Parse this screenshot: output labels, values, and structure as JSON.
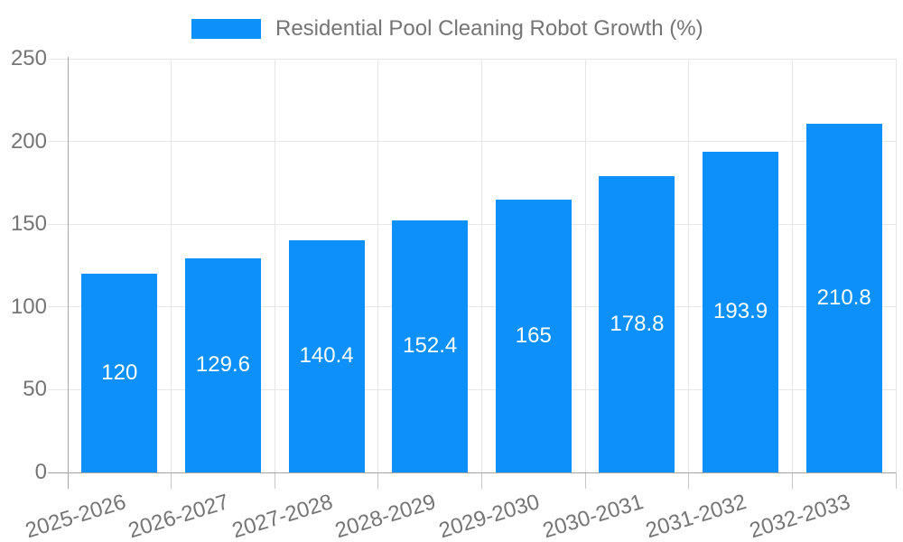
{
  "chart_data": {
    "type": "bar",
    "title": "Residential Pool Cleaning Robot Growth (%)",
    "categories": [
      "2025-2026",
      "2026-2027",
      "2027-2028",
      "2028-2029",
      "2029-2030",
      "2030-2031",
      "2031-2032",
      "2032-2033"
    ],
    "values": [
      120,
      129.6,
      140.4,
      152.4,
      165,
      178.8,
      193.9,
      210.8
    ],
    "value_labels": [
      "120",
      "129.6",
      "140.4",
      "152.4",
      "165",
      "178.8",
      "193.9",
      "210.8"
    ],
    "xlabel": "",
    "ylabel": "",
    "ylim": [
      0,
      250
    ],
    "yticks": [
      0,
      50,
      100,
      150,
      200,
      250
    ],
    "grid": true,
    "legend_position": "top",
    "x_tick_rotation_deg": -17,
    "colors": {
      "bar": "#0d90fa",
      "grid": "#e6e6e6",
      "axis": "#a6a6a6",
      "tick": "#c6c6c6",
      "text": "#757575",
      "value_label": "#ffffff",
      "background": "#ffffff"
    }
  }
}
